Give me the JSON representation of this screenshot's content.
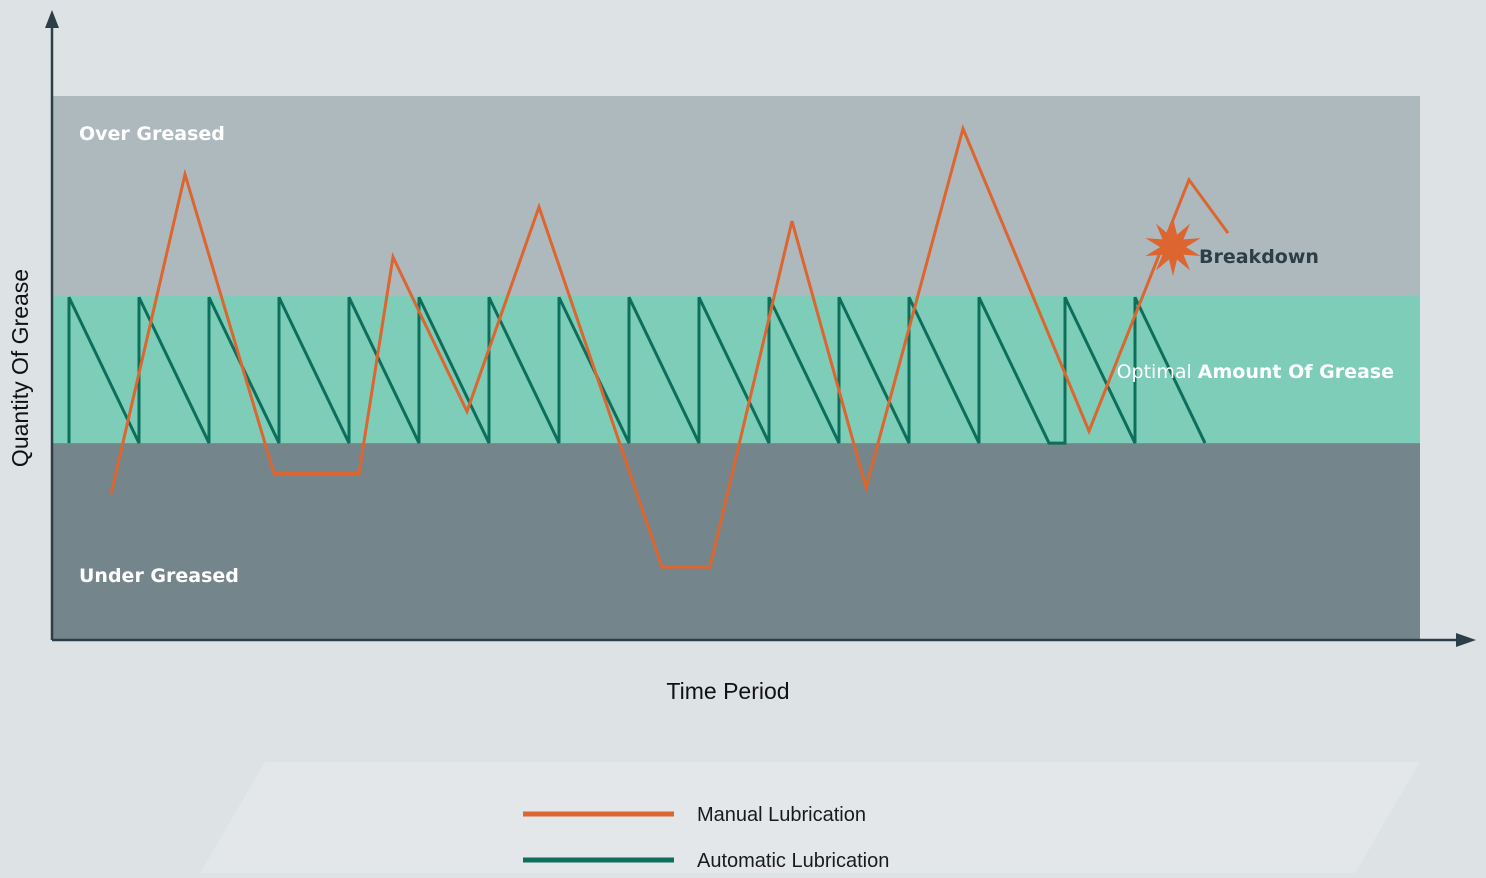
{
  "chart_data": {
    "type": "line",
    "title": "",
    "xlabel": "Time Period",
    "ylabel": "Quantity Of Grease",
    "xlim": [
      0,
      1500
    ],
    "ylim": [
      0,
      500
    ],
    "zones": [
      {
        "key": "under",
        "label": "Under Greased",
        "y_from": 0,
        "y_to": 181,
        "color": "#74868c"
      },
      {
        "key": "optimal",
        "label_plain": "Optimal",
        "label_bold": "Amount Of Grease",
        "y_from": 181,
        "y_to": 317,
        "color": "#7dcdb8"
      },
      {
        "key": "over",
        "label": "Over Greased",
        "y_from": 317,
        "y_to": 500,
        "color": "#aeb9be"
      }
    ],
    "series": [
      {
        "name": "Manual Lubrication",
        "color": "#dc6530",
        "points": [
          [
            59,
            134
          ],
          [
            133,
            428
          ],
          [
            222,
            153
          ],
          [
            307,
            153
          ],
          [
            341,
            352
          ],
          [
            415,
            210
          ],
          [
            487,
            398
          ],
          [
            610,
            67
          ],
          [
            658,
            67
          ],
          [
            740,
            385
          ],
          [
            814,
            140
          ],
          [
            911,
            470
          ],
          [
            1037,
            192
          ],
          [
            1137,
            423
          ],
          [
            1176,
            374
          ]
        ]
      },
      {
        "name": "Automatic Lubrication",
        "color": "#0d6e5b",
        "points": [
          [
            17,
            181
          ],
          [
            17,
            315
          ],
          [
            87,
            181
          ],
          [
            87,
            315
          ],
          [
            157,
            181
          ],
          [
            157,
            315
          ],
          [
            227,
            181
          ],
          [
            227,
            315
          ],
          [
            297,
            181
          ],
          [
            297,
            315
          ],
          [
            367,
            181
          ],
          [
            367,
            315
          ],
          [
            437,
            181
          ],
          [
            437,
            315
          ],
          [
            507,
            181
          ],
          [
            507,
            315
          ],
          [
            577,
            181
          ],
          [
            577,
            315
          ],
          [
            647,
            181
          ],
          [
            647,
            315
          ],
          [
            717,
            181
          ],
          [
            717,
            315
          ],
          [
            787,
            181
          ],
          [
            787,
            315
          ],
          [
            857,
            181
          ],
          [
            857,
            315
          ],
          [
            927,
            181
          ],
          [
            927,
            315
          ],
          [
            997,
            181
          ],
          [
            1013,
            181
          ],
          [
            1013,
            315
          ],
          [
            1083,
            181
          ],
          [
            1083,
            315
          ],
          [
            1153,
            181
          ]
        ]
      }
    ],
    "annotations": [
      {
        "text": "Breakdown",
        "x": 1176,
        "y": 374,
        "marker": "burst-icon",
        "color": "#dc6530"
      }
    ],
    "legend_position": "bottom-center",
    "grid": false
  },
  "colors": {
    "background": "#dde2e5",
    "axis": "#2c3e48",
    "zone_label_light": "#ffffff",
    "zone_label_dark": "#2c3e48"
  }
}
